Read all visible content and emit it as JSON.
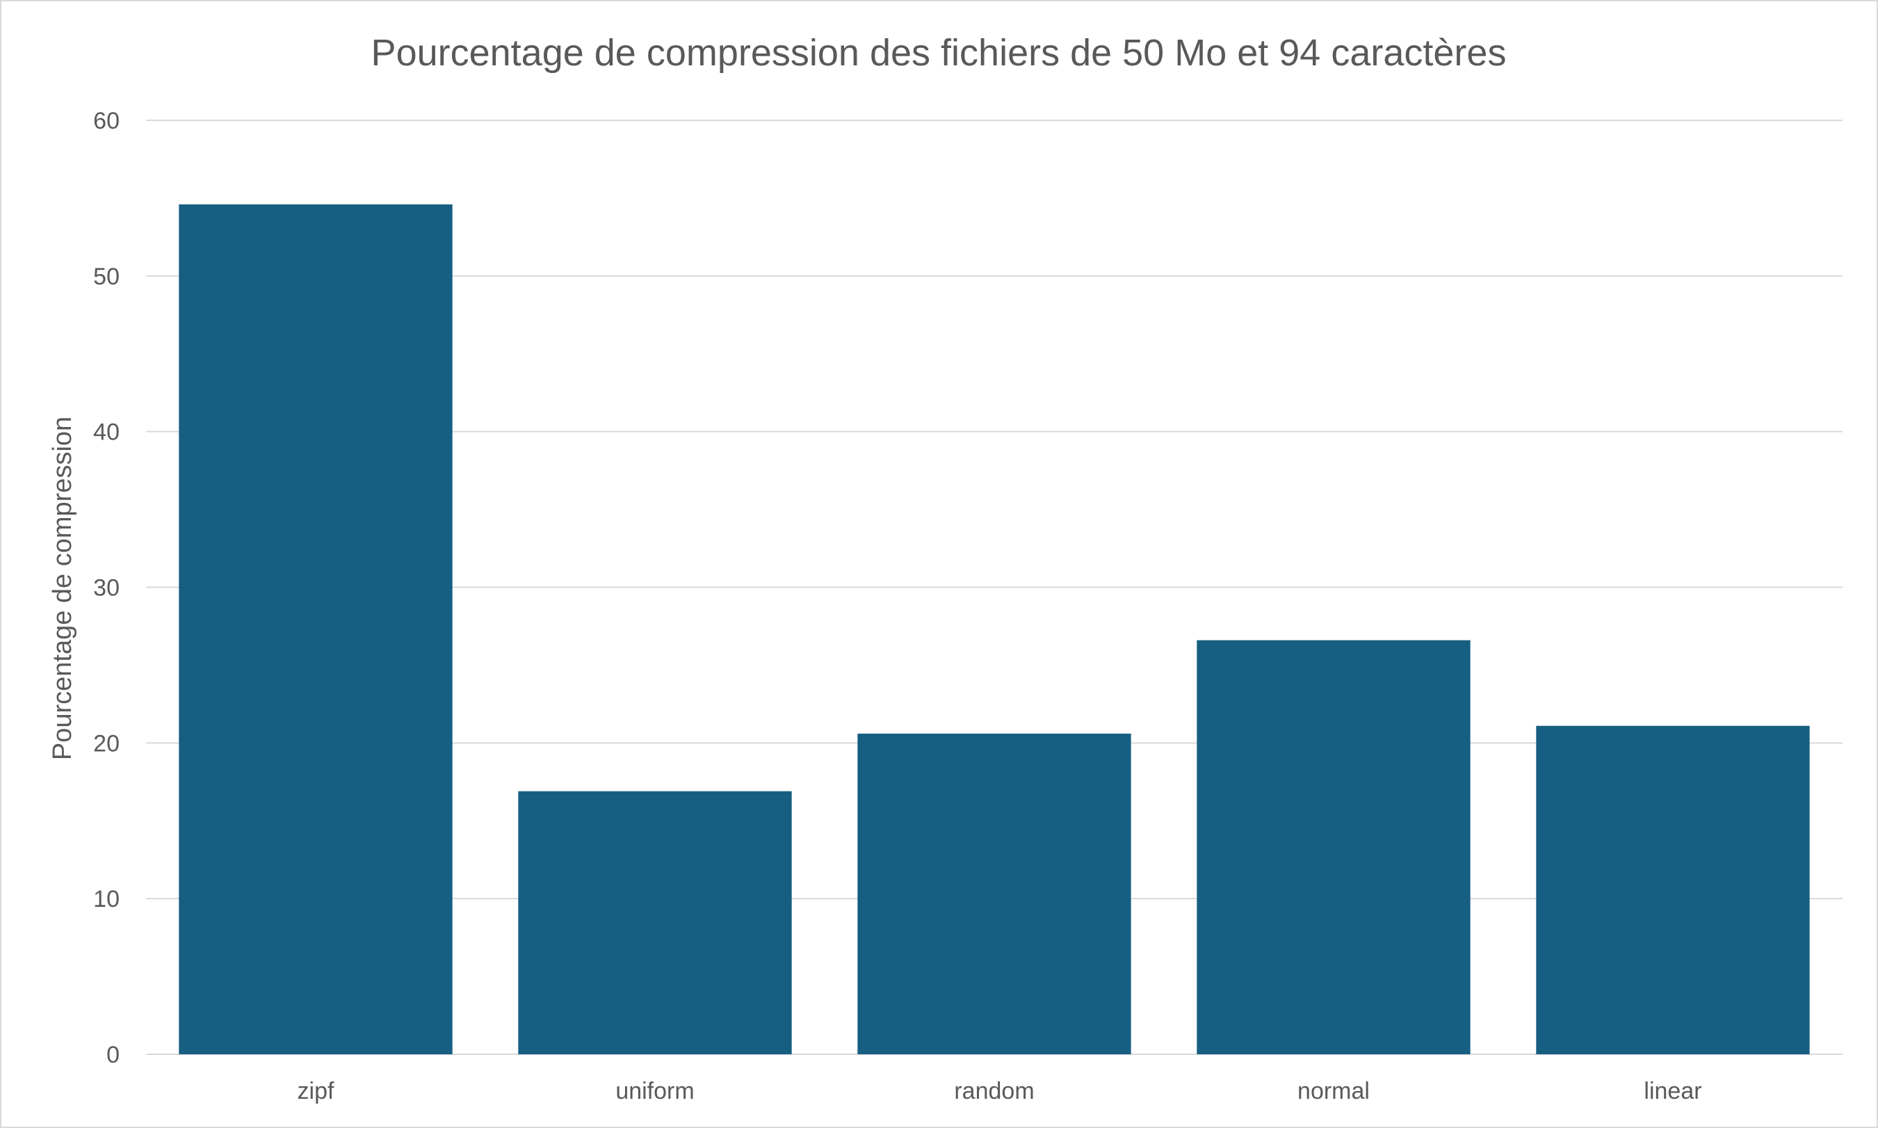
{
  "chart_data": {
    "type": "bar",
    "title": "Pourcentage de compression des fichiers de 50 Mo et 94 caractères",
    "xlabel": "",
    "ylabel": "Pourcentage de compression",
    "categories": [
      "zipf",
      "uniform",
      "random",
      "normal",
      "linear"
    ],
    "values": [
      54.6,
      16.9,
      20.6,
      26.6,
      21.1
    ],
    "ylim": [
      0,
      60
    ],
    "yticks": [
      0,
      10,
      20,
      30,
      40,
      50,
      60
    ],
    "grid": true,
    "legend": "none",
    "bar_color": "#175f82"
  }
}
